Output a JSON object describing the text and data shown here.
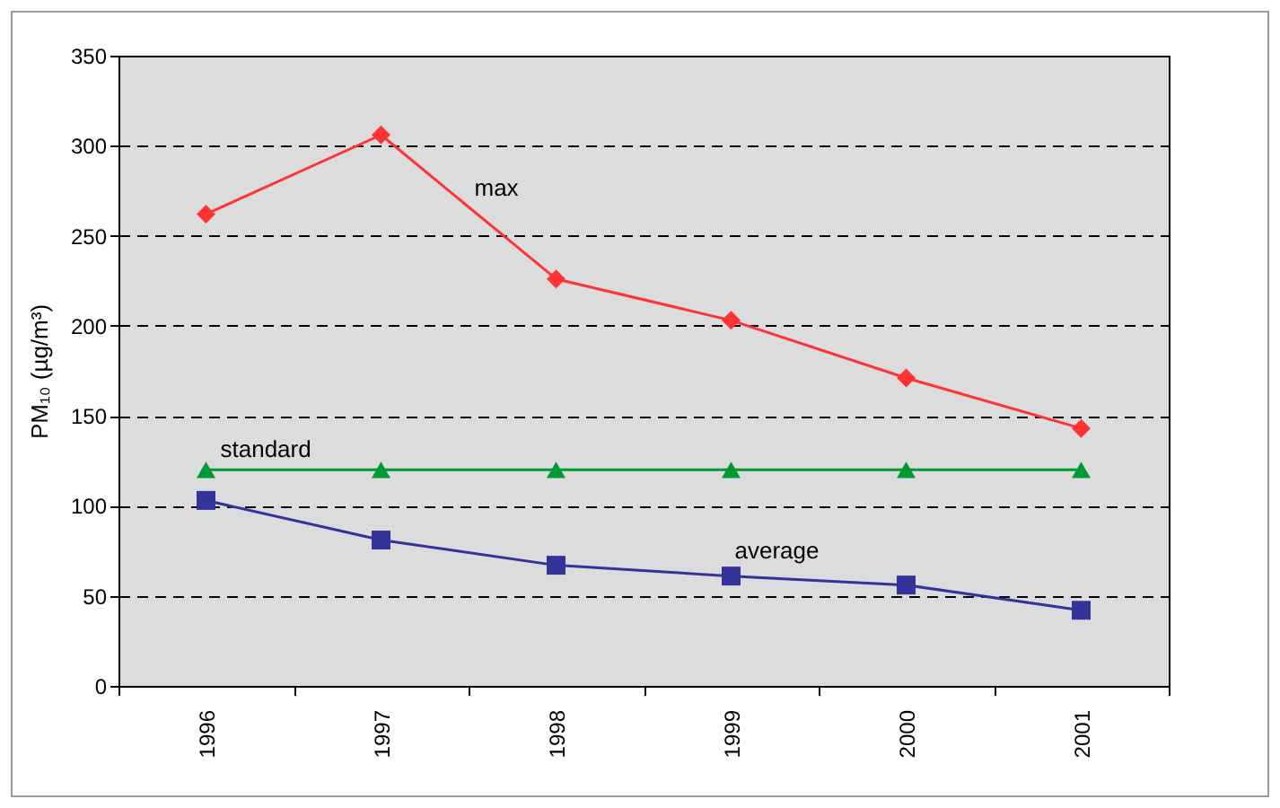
{
  "chart_data": {
    "type": "line",
    "ylabel": "PM₁₀ (µg/m³)",
    "categories": [
      "1996",
      "1997",
      "1998",
      "1999",
      "2000",
      "2001"
    ],
    "series": [
      {
        "name": "max",
        "color": "#ff3333",
        "marker": "diamond",
        "values": [
          262,
          306,
          226,
          203,
          171,
          143
        ]
      },
      {
        "name": "standard",
        "color": "#009933",
        "marker": "triangle",
        "values": [
          120,
          120,
          120,
          120,
          120,
          120
        ]
      },
      {
        "name": "average",
        "color": "#333399",
        "marker": "square",
        "values": [
          103,
          81,
          67,
          61,
          56,
          42
        ]
      }
    ],
    "ylim": [
      0,
      350
    ],
    "yticks": [
      0,
      50,
      100,
      150,
      200,
      250,
      300,
      350
    ],
    "grid": "y",
    "legend": false,
    "line_style": "solid"
  }
}
